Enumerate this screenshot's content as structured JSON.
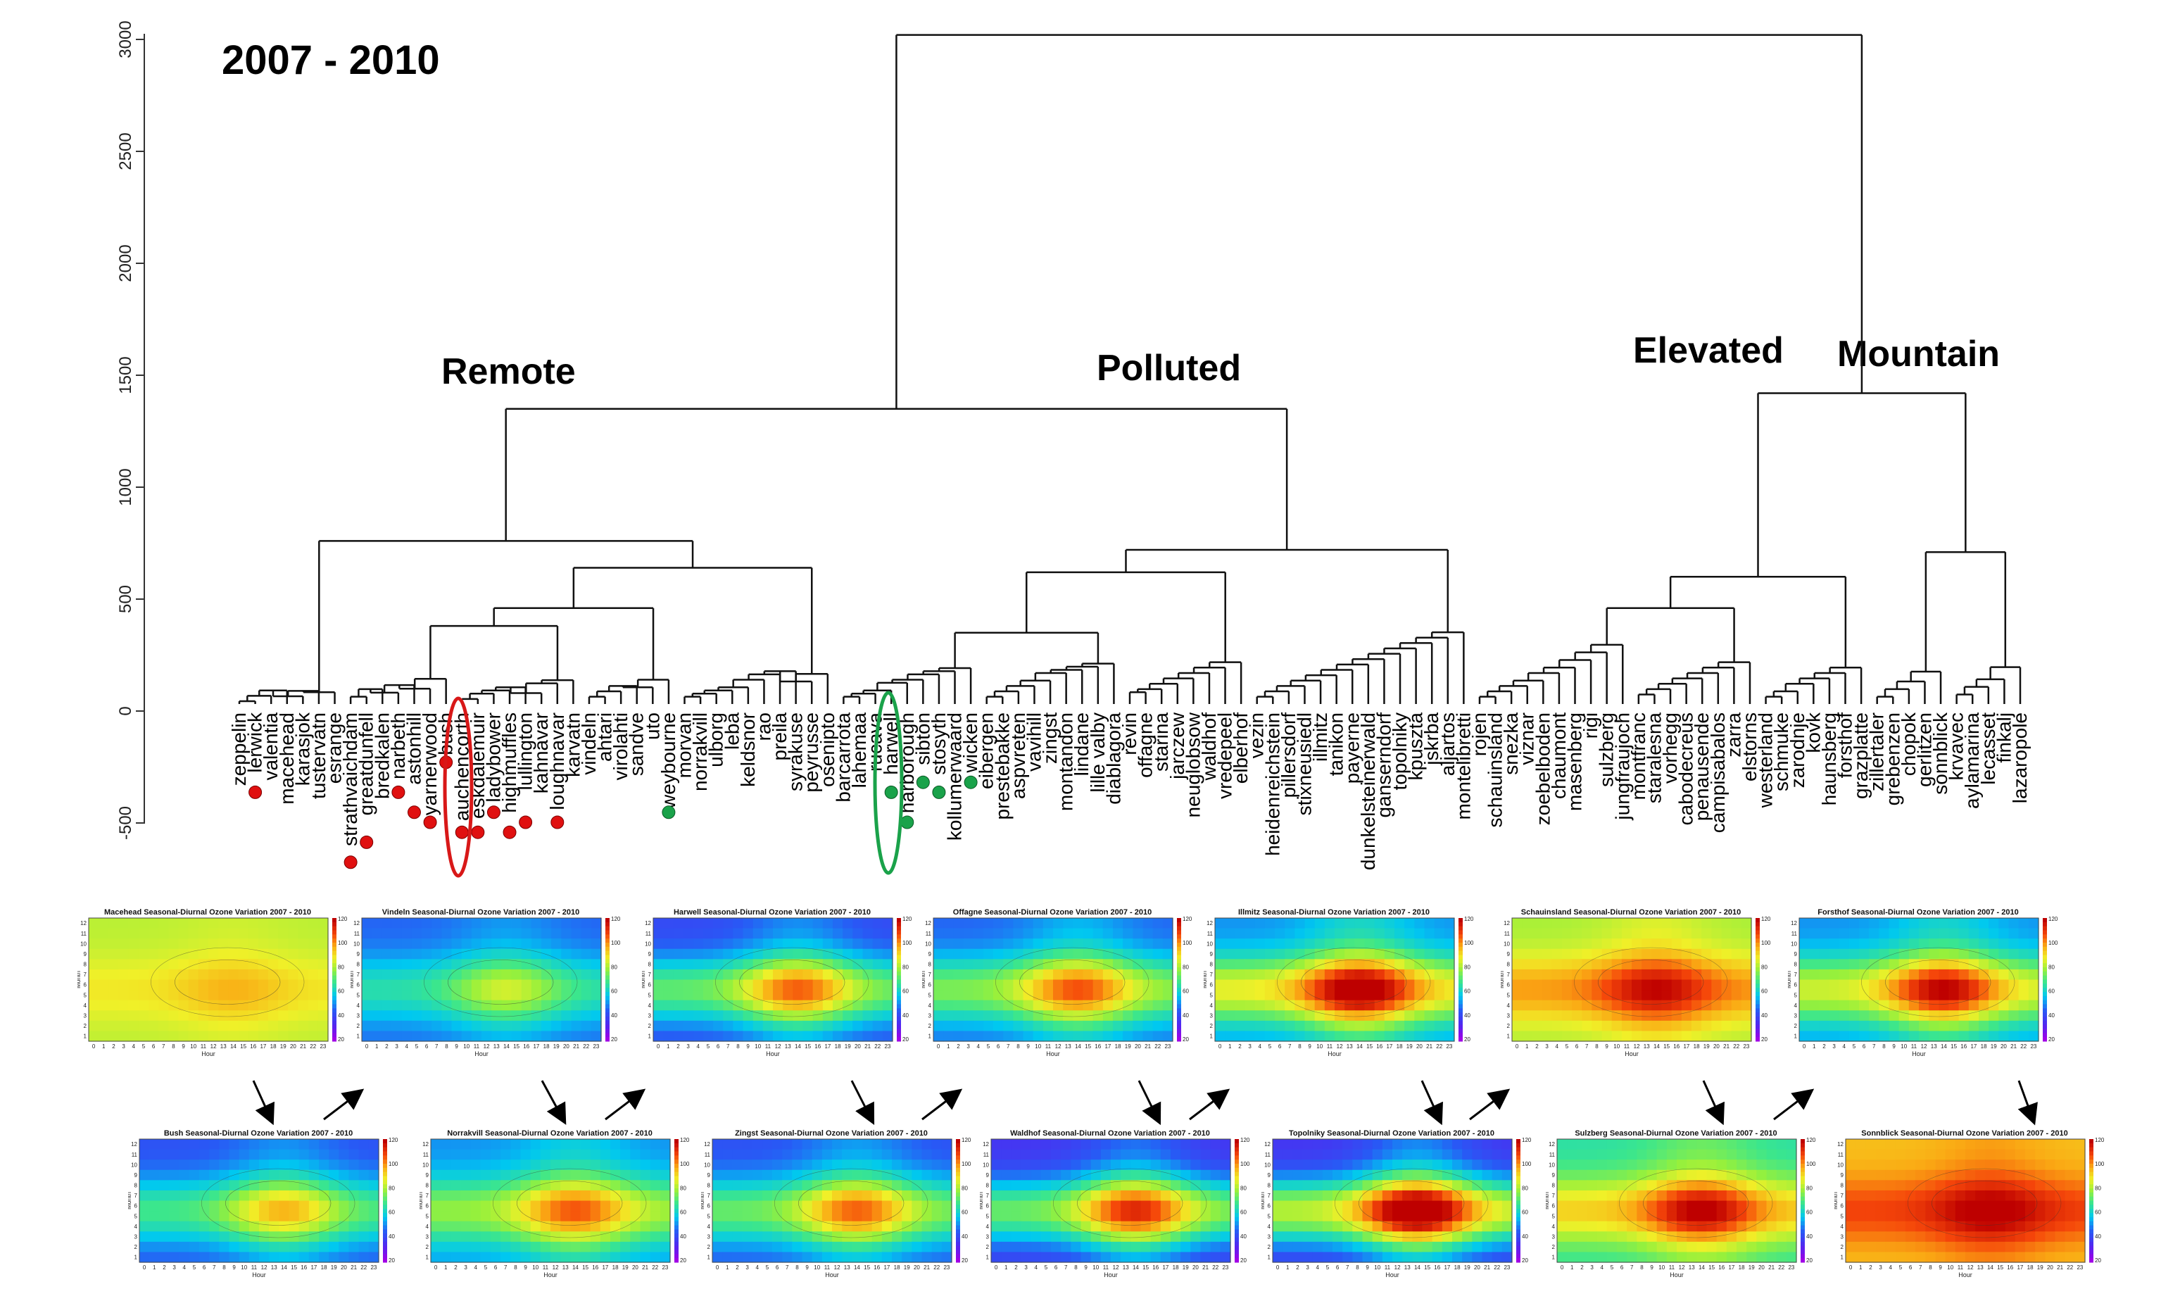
{
  "period_title": "2007 - 2010",
  "group_labels": {
    "remote": "Remote",
    "polluted": "Polluted",
    "elevated": "Elevated",
    "mountain": "Mountain"
  },
  "y_axis": {
    "ticks": [
      "3000",
      "2500",
      "2000",
      "1500",
      "1000",
      "500",
      "0",
      "-500"
    ]
  },
  "leaves": [
    "zeppelin",
    "lerwick",
    "valentia",
    "macehead",
    "karasjok",
    "tustervatn",
    "esrange",
    "strathvaichdam",
    "greatdunfell",
    "bredkalen",
    "narbeth",
    "astonhill",
    "yarnerwood",
    "bush",
    "auchencorth",
    "eskdalemuir",
    "ladybower",
    "highmuffles",
    "lullington",
    "kahnavar",
    "loughnavar",
    "karvatn",
    "vindeln",
    "ahtari",
    "virolahti",
    "sandve",
    "uto",
    "weybourne",
    "morvan",
    "norrakvill",
    "ulborg",
    "leba",
    "keldsnor",
    "rao",
    "preila",
    "syrakuse",
    "peyrusse",
    "osenipto",
    "barcarrota",
    "lahemaa",
    "rucava",
    "harwell",
    "harborough",
    "sibton",
    "stosyth",
    "kollumerwaard",
    "wicken",
    "eibergen",
    "prestebakke",
    "aspvreten",
    "vavihill",
    "zingst",
    "montandon",
    "lindane",
    "lille valby",
    "diablagora",
    "revin",
    "offagne",
    "starina",
    "jarczew",
    "neuglobsow",
    "waldhof",
    "vredepeel",
    "elberhof",
    "vezin",
    "heidenreichstein",
    "pillersdorf",
    "stixneusiedl",
    "illmitz",
    "tanikon",
    "payerne",
    "dunkelsteinerwald",
    "ganserndorf",
    "topolniky",
    "kpuszta",
    "jskrba",
    "aljartos",
    "montelibretti",
    "rojen",
    "schauinsland",
    "snezka",
    "viznar",
    "zoebelboden",
    "chaumont",
    "masenberg",
    "rigi",
    "sulzberg",
    "jungfraujoch",
    "montfranc",
    "staralesna",
    "vorhegg",
    "cabodecreus",
    "penausende",
    "campisabalos",
    "zarra",
    "elstorns",
    "westerland",
    "schmuke",
    "zarodnje",
    "kovk",
    "haunsberg",
    "forsthof",
    "grazplatte",
    "zillertaler",
    "grebenzen",
    "chopok",
    "gerlitzen",
    "sonnblick",
    "krvavec",
    "aylamarina",
    "lecasset",
    "finkalj",
    "lazaropole"
  ],
  "markers": {
    "red": [
      "lerwick",
      "strathvaichdam",
      "greatdunfell",
      "narbeth",
      "astonhill",
      "yarnerwood",
      "bush",
      "auchencorth",
      "eskdalemuir",
      "ladybower",
      "highmuffles",
      "lullington",
      "loughnavar"
    ],
    "green": [
      "weybourne",
      "harwell",
      "harborough",
      "sibton",
      "stosyth",
      "wicken"
    ]
  },
  "heatmaps": {
    "row1": [
      {
        "title": "Macehead Seasonal-Diurnal Ozone Variation 2007 - 2010",
        "palette": "macehead"
      },
      {
        "title": "Vindeln Seasonal-Diurnal Ozone Variation 2007 - 2010",
        "palette": "vindeln"
      },
      {
        "title": "Harwell Seasonal-Diurnal Ozone Variation 2007 - 2010",
        "palette": "harwell"
      },
      {
        "title": "Offagne Seasonal-Diurnal Ozone Variation 2007 - 2010",
        "palette": "offagne"
      },
      {
        "title": "Illmitz Seasonal-Diurnal Ozone Variation 2007 - 2010",
        "palette": "illmitz"
      },
      {
        "title": "Schauinsland Seasonal-Diurnal Ozone Variation 2007 - 2010",
        "palette": "schauinsland"
      },
      {
        "title": "Forsthof Seasonal-Diurnal Ozone Variation 2007 - 2010",
        "palette": "forsthof"
      }
    ],
    "row2": [
      {
        "title": "Bush Seasonal-Diurnal Ozone Variation 2007 - 2010",
        "palette": "bush"
      },
      {
        "title": "Norrakvill Seasonal-Diurnal Ozone Variation 2007 - 2010",
        "palette": "norrakvill"
      },
      {
        "title": "Zingst Seasonal-Diurnal Ozone Variation 2007 - 2010",
        "palette": "zingst"
      },
      {
        "title": "Waldhof Seasonal-Diurnal Ozone Variation 2007 - 2010",
        "palette": "waldhof"
      },
      {
        "title": "Topolniky Seasonal-Diurnal Ozone Variation 2007 - 2010",
        "palette": "topolniky"
      },
      {
        "title": "Sulzberg Seasonal-Diurnal Ozone Variation 2007 - 2010",
        "palette": "sulzberg"
      },
      {
        "title": "Sonnblick Seasonal-Diurnal Ozone Variation 2007 - 2010",
        "palette": "sonnblick"
      }
    ],
    "axis": {
      "x_label": "Hour",
      "y_label": "Month",
      "hours": [
        "0",
        "1",
        "2",
        "3",
        "4",
        "5",
        "6",
        "7",
        "8",
        "9",
        "10",
        "11",
        "12",
        "13",
        "14",
        "15",
        "16",
        "17",
        "18",
        "19",
        "20",
        "21",
        "22",
        "23"
      ],
      "months": [
        "12",
        "11",
        "10",
        "9",
        "8",
        "7",
        "6",
        "5",
        "4",
        "3",
        "2",
        "1"
      ],
      "scale": [
        "120",
        "100",
        "80",
        "60",
        "40",
        "20"
      ]
    }
  },
  "colors": {
    "red_marker": "#e01010",
    "green_marker": "#1aa24a",
    "red_ellipse": "#d81818",
    "green_ellipse": "#1aa24a"
  }
}
